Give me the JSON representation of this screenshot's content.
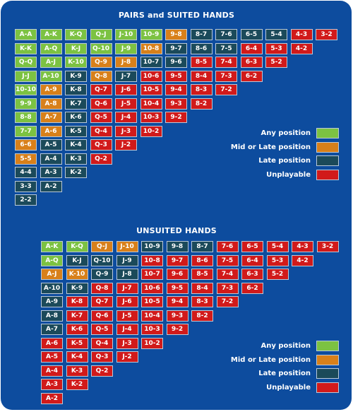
{
  "colors": {
    "any": "#7cc242",
    "mid": "#d8801a",
    "late": "#1b4a5a",
    "unplayable": "#d11a1a"
  },
  "grid1": {
    "title": "PAIRS and SUITED HANDS",
    "rows": [
      [
        "A-A",
        "A-K",
        "K-Q",
        "Q-J",
        "J-10",
        "10-9",
        "9-8",
        "8-7",
        "7-6",
        "6-5",
        "5-4",
        "4-3",
        "3-2"
      ],
      [
        "K-K",
        "A-Q",
        "K-J",
        "Q-10",
        "J-9",
        "10-8",
        "9-7",
        "8-6",
        "7-5",
        "6-4",
        "5-3",
        "4-2"
      ],
      [
        "Q-Q",
        "A-J",
        "K-10",
        "Q-9",
        "J-8",
        "10-7",
        "9-6",
        "8-5",
        "7-4",
        "6-3",
        "5-2"
      ],
      [
        "J-J",
        "A-10",
        "K-9",
        "Q-8",
        "J-7",
        "10-6",
        "9-5",
        "8-4",
        "7-3",
        "6-2"
      ],
      [
        "10-10",
        "A-9",
        "K-8",
        "Q-7",
        "J-6",
        "10-5",
        "9-4",
        "8-3",
        "7-2"
      ],
      [
        "9-9",
        "A-8",
        "K-7",
        "Q-6",
        "J-5",
        "10-4",
        "9-3",
        "8-2"
      ],
      [
        "8-8",
        "A-7",
        "K-6",
        "Q-5",
        "J-4",
        "10-3",
        "9-2"
      ],
      [
        "7-7",
        "A-6",
        "K-5",
        "Q-4",
        "J-3",
        "10-2"
      ],
      [
        "6-6",
        "A-5",
        "K-4",
        "Q-3",
        "J-2"
      ],
      [
        "5-5",
        "A-4",
        "K-3",
        "Q-2"
      ],
      [
        "4-4",
        "A-3",
        "K-2"
      ],
      [
        "3-3",
        "A-2"
      ],
      [
        "2-2"
      ]
    ],
    "cats": [
      [
        "a",
        "a",
        "a",
        "a",
        "a",
        "a",
        "m",
        "l",
        "l",
        "l",
        "l",
        "u",
        "u"
      ],
      [
        "a",
        "a",
        "a",
        "a",
        "a",
        "m",
        "l",
        "l",
        "l",
        "u",
        "u",
        "u"
      ],
      [
        "a",
        "a",
        "a",
        "m",
        "m",
        "l",
        "l",
        "u",
        "u",
        "u",
        "u"
      ],
      [
        "a",
        "a",
        "l",
        "m",
        "l",
        "u",
        "u",
        "u",
        "u",
        "u"
      ],
      [
        "a",
        "m",
        "l",
        "u",
        "u",
        "u",
        "u",
        "u",
        "u"
      ],
      [
        "a",
        "m",
        "l",
        "u",
        "u",
        "u",
        "u",
        "u"
      ],
      [
        "a",
        "m",
        "l",
        "u",
        "u",
        "u",
        "u"
      ],
      [
        "a",
        "m",
        "l",
        "u",
        "u",
        "u"
      ],
      [
        "m",
        "l",
        "l",
        "u",
        "u"
      ],
      [
        "m",
        "l",
        "l",
        "u"
      ],
      [
        "l",
        "l",
        "l"
      ],
      [
        "l",
        "l"
      ],
      [
        "l"
      ]
    ]
  },
  "grid2": {
    "title": "UNSUITED HANDS",
    "rows": [
      [
        "A-K",
        "K-Q",
        "Q-J",
        "J-10",
        "10-9",
        "9-8",
        "8-7",
        "7-6",
        "6-5",
        "5-4",
        "4-3",
        "3-2"
      ],
      [
        "A-Q",
        "K-J",
        "Q-10",
        "J-9",
        "10-8",
        "9-7",
        "8-6",
        "7-5",
        "6-4",
        "5-3",
        "4-2"
      ],
      [
        "A-J",
        "K-10",
        "Q-9",
        "J-8",
        "10-7",
        "9-6",
        "8-5",
        "7-4",
        "6-3",
        "5-2"
      ],
      [
        "A-10",
        "K-9",
        "Q-8",
        "J-7",
        "10-6",
        "9-5",
        "8-4",
        "7-3",
        "6-2"
      ],
      [
        "A-9",
        "K-8",
        "Q-7",
        "J-6",
        "10-5",
        "9-4",
        "8-3",
        "7-2"
      ],
      [
        "A-8",
        "K-7",
        "Q-6",
        "J-5",
        "10-4",
        "9-3",
        "8-2"
      ],
      [
        "A-7",
        "K-6",
        "Q-5",
        "J-4",
        "10-3",
        "9-2"
      ],
      [
        "A-6",
        "K-5",
        "Q-4",
        "J-3",
        "10-2"
      ],
      [
        "A-5",
        "K-4",
        "Q-3",
        "J-2"
      ],
      [
        "A-4",
        "K-3",
        "Q-2"
      ],
      [
        "A-3",
        "K-2"
      ],
      [
        "A-2"
      ]
    ],
    "cats": [
      [
        "a",
        "a",
        "m",
        "m",
        "l",
        "l",
        "l",
        "u",
        "u",
        "u",
        "u",
        "u"
      ],
      [
        "a",
        "l",
        "l",
        "l",
        "u",
        "u",
        "u",
        "u",
        "u",
        "u",
        "u"
      ],
      [
        "m",
        "m",
        "l",
        "l",
        "u",
        "u",
        "u",
        "u",
        "u",
        "u"
      ],
      [
        "l",
        "l",
        "u",
        "u",
        "u",
        "u",
        "u",
        "u",
        "u"
      ],
      [
        "l",
        "u",
        "u",
        "u",
        "u",
        "u",
        "u",
        "u"
      ],
      [
        "l",
        "u",
        "u",
        "u",
        "u",
        "u",
        "u"
      ],
      [
        "l",
        "u",
        "u",
        "u",
        "u",
        "u"
      ],
      [
        "u",
        "u",
        "u",
        "u",
        "u"
      ],
      [
        "u",
        "u",
        "u",
        "u"
      ],
      [
        "u",
        "u",
        "u"
      ],
      [
        "u",
        "u"
      ],
      [
        "u"
      ]
    ]
  },
  "legend": [
    {
      "label": "Any position",
      "cat": "a"
    },
    {
      "label": "Mid or Late position",
      "cat": "m"
    },
    {
      "label": "Late position",
      "cat": "l"
    },
    {
      "label": "Unplayable",
      "cat": "u"
    }
  ]
}
